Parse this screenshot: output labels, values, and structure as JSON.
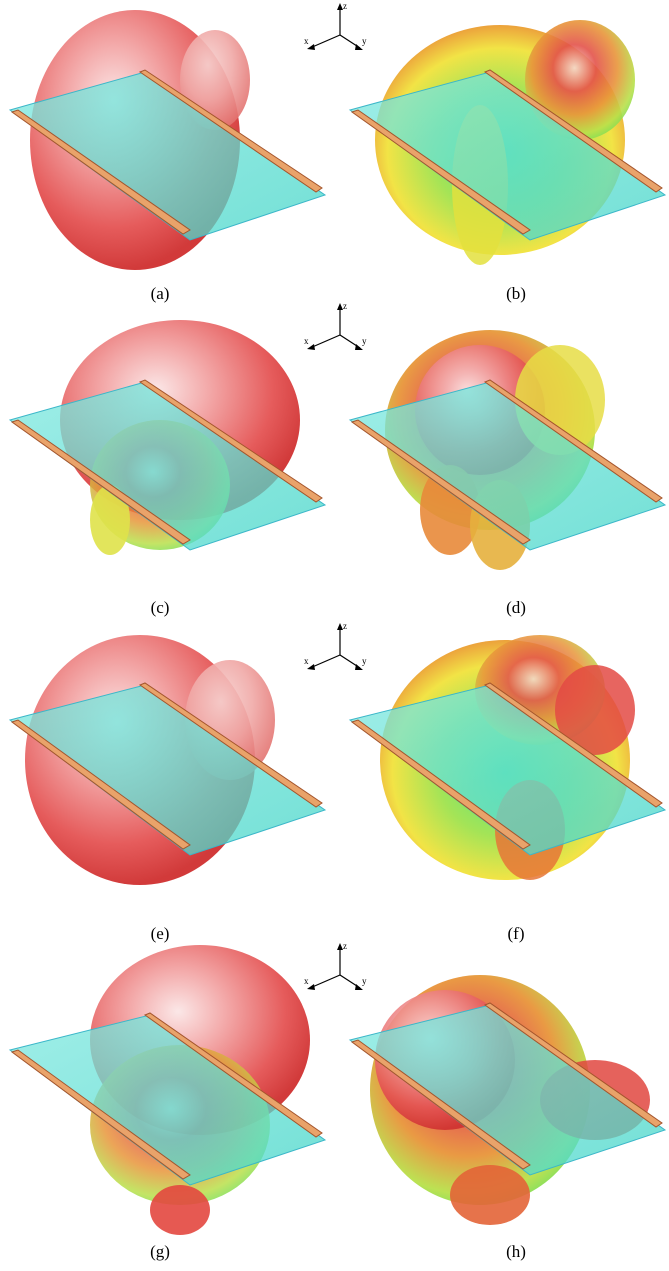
{
  "captions": [
    "(a)",
    "(b)",
    "(c)",
    "(d)",
    "(e)",
    "(f)",
    "(g)",
    "(h)"
  ],
  "axis_labels": {
    "z": "z",
    "x": "x",
    "y": "y"
  }
}
